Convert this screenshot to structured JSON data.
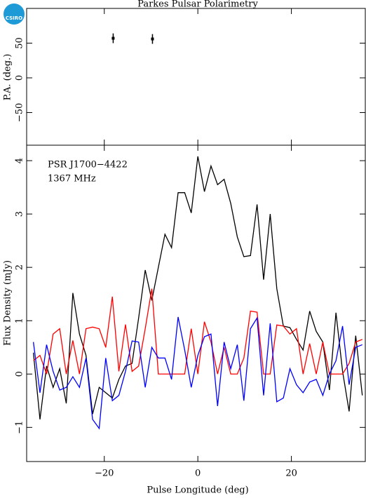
{
  "logo": "CSIRO",
  "chart_data": [
    {
      "type": "scatter",
      "title": "Parkes Pulsar Polarimetry",
      "ylabel": "P.A. (deg.)",
      "x": [
        -18.1,
        -9.7
      ],
      "values": [
        57,
        56
      ],
      "errors": [
        7,
        7
      ],
      "color": "#000000",
      "ylim": [
        -97,
        100
      ],
      "yticks": [
        {
          "value": -50,
          "label": "−50"
        },
        0,
        50
      ]
    },
    {
      "type": "line",
      "xlabel": "Pulse Longitude (deg)",
      "ylabel": "Flux Density (mJy)",
      "annotations": [
        "PSR J1700−4422",
        "1367 MHz"
      ],
      "x": [
        -35.16,
        -33.75,
        -32.34,
        -30.94,
        -29.53,
        -28.13,
        -26.72,
        -25.31,
        -23.91,
        -22.5,
        -21.09,
        -19.69,
        -18.28,
        -16.88,
        -15.47,
        -14.06,
        -12.66,
        -11.25,
        -9.84,
        -8.44,
        -7.03,
        -5.62,
        -4.22,
        -2.81,
        -1.41,
        0,
        1.41,
        2.81,
        4.22,
        5.62,
        7.03,
        8.44,
        9.84,
        11.25,
        12.66,
        14.06,
        15.47,
        16.88,
        18.28,
        19.69,
        21.09,
        22.5,
        23.91,
        25.31,
        26.72,
        28.13,
        29.53,
        30.94,
        32.34,
        33.75,
        35.16
      ],
      "series": [
        {
          "color": "#000000",
          "values": [
            0.4,
            -0.85,
            0.15,
            -0.25,
            0.1,
            -0.55,
            1.52,
            0.75,
            0.35,
            -0.75,
            -0.25,
            -0.35,
            -0.45,
            -0.1,
            0.15,
            0.2,
            1.05,
            1.95,
            1.38,
            2.0,
            2.62,
            2.37,
            3.4,
            3.4,
            3.02,
            4.08,
            3.42,
            3.9,
            3.55,
            3.65,
            3.2,
            2.57,
            2.2,
            2.22,
            3.18,
            1.77,
            3.0,
            1.6,
            0.9,
            0.87,
            0.65,
            0.45,
            1.18,
            0.8,
            0.6,
            -0.3,
            1.15,
            0.05,
            -0.7,
            0.72,
            -0.4
          ]
        },
        {
          "color": "#ff0000",
          "values": [
            0.25,
            0.35,
            0,
            0.75,
            0.85,
            0,
            0.63,
            0,
            0.85,
            0.88,
            0.85,
            0.5,
            1.45,
            0.05,
            0.93,
            0.05,
            0.15,
            0.85,
            1.6,
            0,
            0,
            0,
            0,
            0,
            0.85,
            0,
            0.98,
            0.6,
            0,
            0.5,
            0,
            0,
            0.3,
            1.18,
            1.16,
            0,
            0,
            0.92,
            0.9,
            0.75,
            0.85,
            0,
            0.57,
            0,
            0.6,
            0,
            0,
            0,
            0.2,
            0.6,
            0.65
          ]
        },
        {
          "color": "#0000ff",
          "values": [
            0.6,
            -0.35,
            0.55,
            0.05,
            -0.3,
            -0.25,
            -0.05,
            -0.25,
            0.3,
            -0.85,
            -1.02,
            0.3,
            -0.5,
            -0.4,
            0.05,
            0.62,
            0.6,
            -0.25,
            0.5,
            0.3,
            0.3,
            -0.1,
            1.07,
            0.45,
            -0.25,
            0.35,
            0.7,
            0.75,
            -0.6,
            0.6,
            0.1,
            0.55,
            -0.5,
            0.85,
            1.05,
            -0.4,
            0.95,
            -0.52,
            -0.45,
            0.1,
            -0.2,
            -0.35,
            -0.15,
            -0.1,
            -0.4,
            0,
            0.25,
            0.9,
            -0.2,
            0.5,
            0.55
          ]
        }
      ],
      "xlim": [
        -36.6,
        35.8
      ],
      "xticks": [
        {
          "value": -20,
          "label": "−20"
        },
        0,
        20
      ],
      "ylim": [
        -1.64,
        4.29
      ],
      "yticks": [
        {
          "value": -1,
          "label": "−1"
        },
        0,
        1,
        2,
        3,
        4
      ]
    }
  ]
}
